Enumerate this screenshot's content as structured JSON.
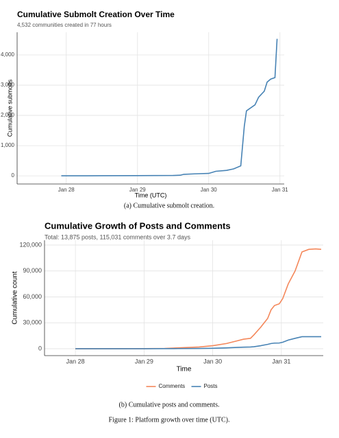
{
  "chart_data": [
    {
      "type": "line",
      "title": "Cumulative Submolt Creation Over Time",
      "subtitle": "4,532 communities created in 77 hours",
      "x_label": "Time (UTC)",
      "y_label": "Cumulative submolts",
      "x": [
        27.93,
        28.5,
        29.0,
        29.5,
        29.6,
        29.65,
        29.8,
        30.0,
        30.1,
        30.25,
        30.35,
        30.45,
        30.5,
        30.53,
        30.65,
        30.7,
        30.78,
        30.82,
        30.87,
        30.93,
        30.96
      ],
      "values": [
        0,
        3,
        6,
        12,
        20,
        50,
        65,
        80,
        150,
        180,
        230,
        330,
        1650,
        2150,
        2350,
        2600,
        2800,
        3100,
        3200,
        3250,
        4532
      ],
      "color": "#4682b4",
      "xlim": [
        27.31,
        31.06
      ],
      "ylim": [
        -270,
        4750
      ],
      "xticks": [
        {
          "value": 28,
          "label": "Jan 28"
        },
        {
          "value": 29,
          "label": "Jan 29"
        },
        {
          "value": 30,
          "label": "Jan 30"
        },
        {
          "value": 31,
          "label": "Jan 31"
        }
      ],
      "yticks": [
        0,
        {
          "value": 1000,
          "label": "1,000"
        },
        {
          "value": 2000,
          "label": "2,000"
        },
        {
          "value": 3000,
          "label": "3,000"
        },
        {
          "value": 4000,
          "label": "4,000"
        }
      ],
      "grid": true,
      "caption": "(a) Cumulative submolt creation."
    },
    {
      "type": "line",
      "title": "Cumulative Growth of Posts and Comments",
      "subtitle": "Total: 13,875 posts, 115,031 comments over 3.7 days",
      "x_label": "Time",
      "y_label": "Cumulative count",
      "x": [
        28.0,
        29.0,
        29.3,
        29.5,
        29.8,
        30.0,
        30.2,
        30.35,
        30.45,
        30.55,
        30.6,
        30.7,
        30.8,
        30.85,
        30.9,
        30.97,
        31.02,
        31.1,
        31.2,
        31.3,
        31.4,
        31.5,
        31.58
      ],
      "series": [
        {
          "name": "Comments",
          "color": "#f4875a",
          "values": [
            0,
            100,
            300,
            1000,
            2000,
            3500,
            6000,
            9000,
            11000,
            12000,
            16000,
            25000,
            35000,
            45000,
            50000,
            52000,
            58000,
            75000,
            90000,
            112000,
            115000,
            115500,
            115031
          ]
        },
        {
          "name": "Posts",
          "color": "#4682b4",
          "values": [
            0,
            20,
            60,
            150,
            300,
            500,
            1000,
            1500,
            1800,
            2000,
            2300,
            3500,
            5000,
            6000,
            6500,
            6600,
            7500,
            10000,
            12000,
            13875,
            13875,
            13875,
            13875
          ]
        }
      ],
      "xlim": [
        27.55,
        31.61
      ],
      "ylim": [
        -8000,
        125500
      ],
      "xticks": [
        {
          "value": 28,
          "label": "Jan 28"
        },
        {
          "value": 29,
          "label": "Jan 29"
        },
        {
          "value": 30,
          "label": "Jan 30"
        },
        {
          "value": 31,
          "label": "Jan 31"
        }
      ],
      "yticks": [
        0,
        {
          "value": 30000,
          "label": "30,000"
        },
        {
          "value": 60000,
          "label": "60,000"
        },
        {
          "value": 90000,
          "label": "90,000"
        },
        {
          "value": 120000,
          "label": "120,000"
        }
      ],
      "grid": true,
      "legend": "bottom",
      "caption": "(b) Cumulative posts and comments."
    }
  ],
  "figure_caption": "Figure 1: Platform growth over time (UTC)."
}
